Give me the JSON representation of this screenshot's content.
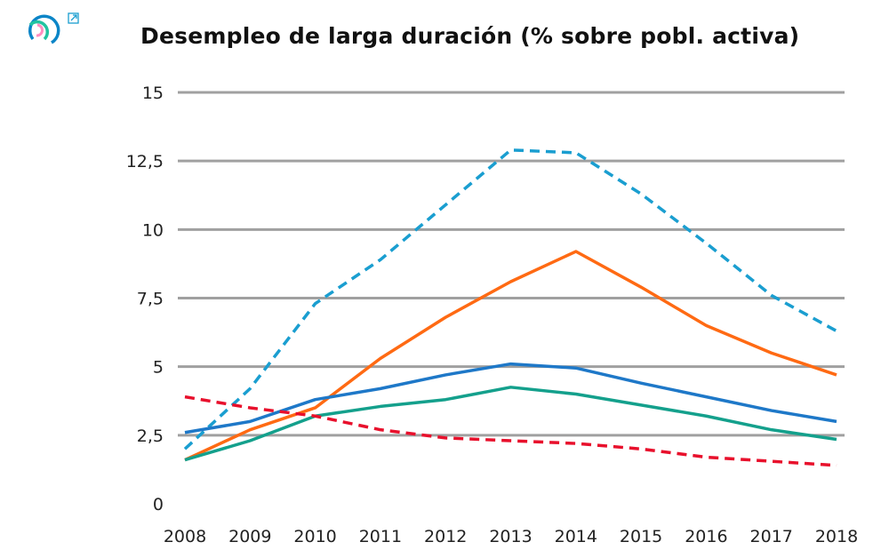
{
  "chart_data": {
    "type": "line",
    "title": "Desempleo de larga duración (% sobre pobl. activa)",
    "xlabel": "",
    "ylabel": "",
    "x": [
      2008,
      2009,
      2010,
      2011,
      2012,
      2013,
      2014,
      2015,
      2016,
      2017,
      2018
    ],
    "x_tick_labels": [
      "2008",
      "2009",
      "2010",
      "2011",
      "2012",
      "2013",
      "2014",
      "2015",
      "2016",
      "2017",
      "2018"
    ],
    "ylim": [
      0,
      15
    ],
    "y_ticks": [
      0,
      2.5,
      5,
      7.5,
      10,
      12.5,
      15
    ],
    "y_tick_labels": [
      "0",
      "2,5",
      "5",
      "7,5",
      "10",
      "12,5",
      "15"
    ],
    "grid": "horizontal",
    "legend": "none",
    "series": [
      {
        "color": "#1a9ed0",
        "style": "dashed",
        "values": [
          2.0,
          4.2,
          7.3,
          8.9,
          10.9,
          12.9,
          12.8,
          11.3,
          9.5,
          7.6,
          6.3
        ]
      },
      {
        "color": "#ff6a13",
        "style": "solid",
        "values": [
          1.6,
          2.7,
          3.5,
          5.3,
          6.8,
          8.1,
          9.2,
          7.9,
          6.5,
          5.5,
          4.7
        ]
      },
      {
        "color": "#1e78c8",
        "style": "solid",
        "values": [
          2.6,
          3.0,
          3.8,
          4.2,
          4.7,
          5.1,
          4.95,
          4.4,
          3.9,
          3.4,
          3.0
        ]
      },
      {
        "color": "#14a08c",
        "style": "solid",
        "values": [
          1.6,
          2.3,
          3.2,
          3.55,
          3.8,
          4.25,
          4.0,
          3.6,
          3.2,
          2.7,
          2.35
        ]
      },
      {
        "color": "#e8102c",
        "style": "dashed",
        "values": [
          3.9,
          3.5,
          3.2,
          2.7,
          2.4,
          2.3,
          2.2,
          2.0,
          1.7,
          1.55,
          1.4
        ]
      }
    ]
  },
  "logo": {
    "colors": [
      "#0b85c7",
      "#22c3a0",
      "#ff8ec0"
    ],
    "external_link_icon": "external-link-icon"
  }
}
